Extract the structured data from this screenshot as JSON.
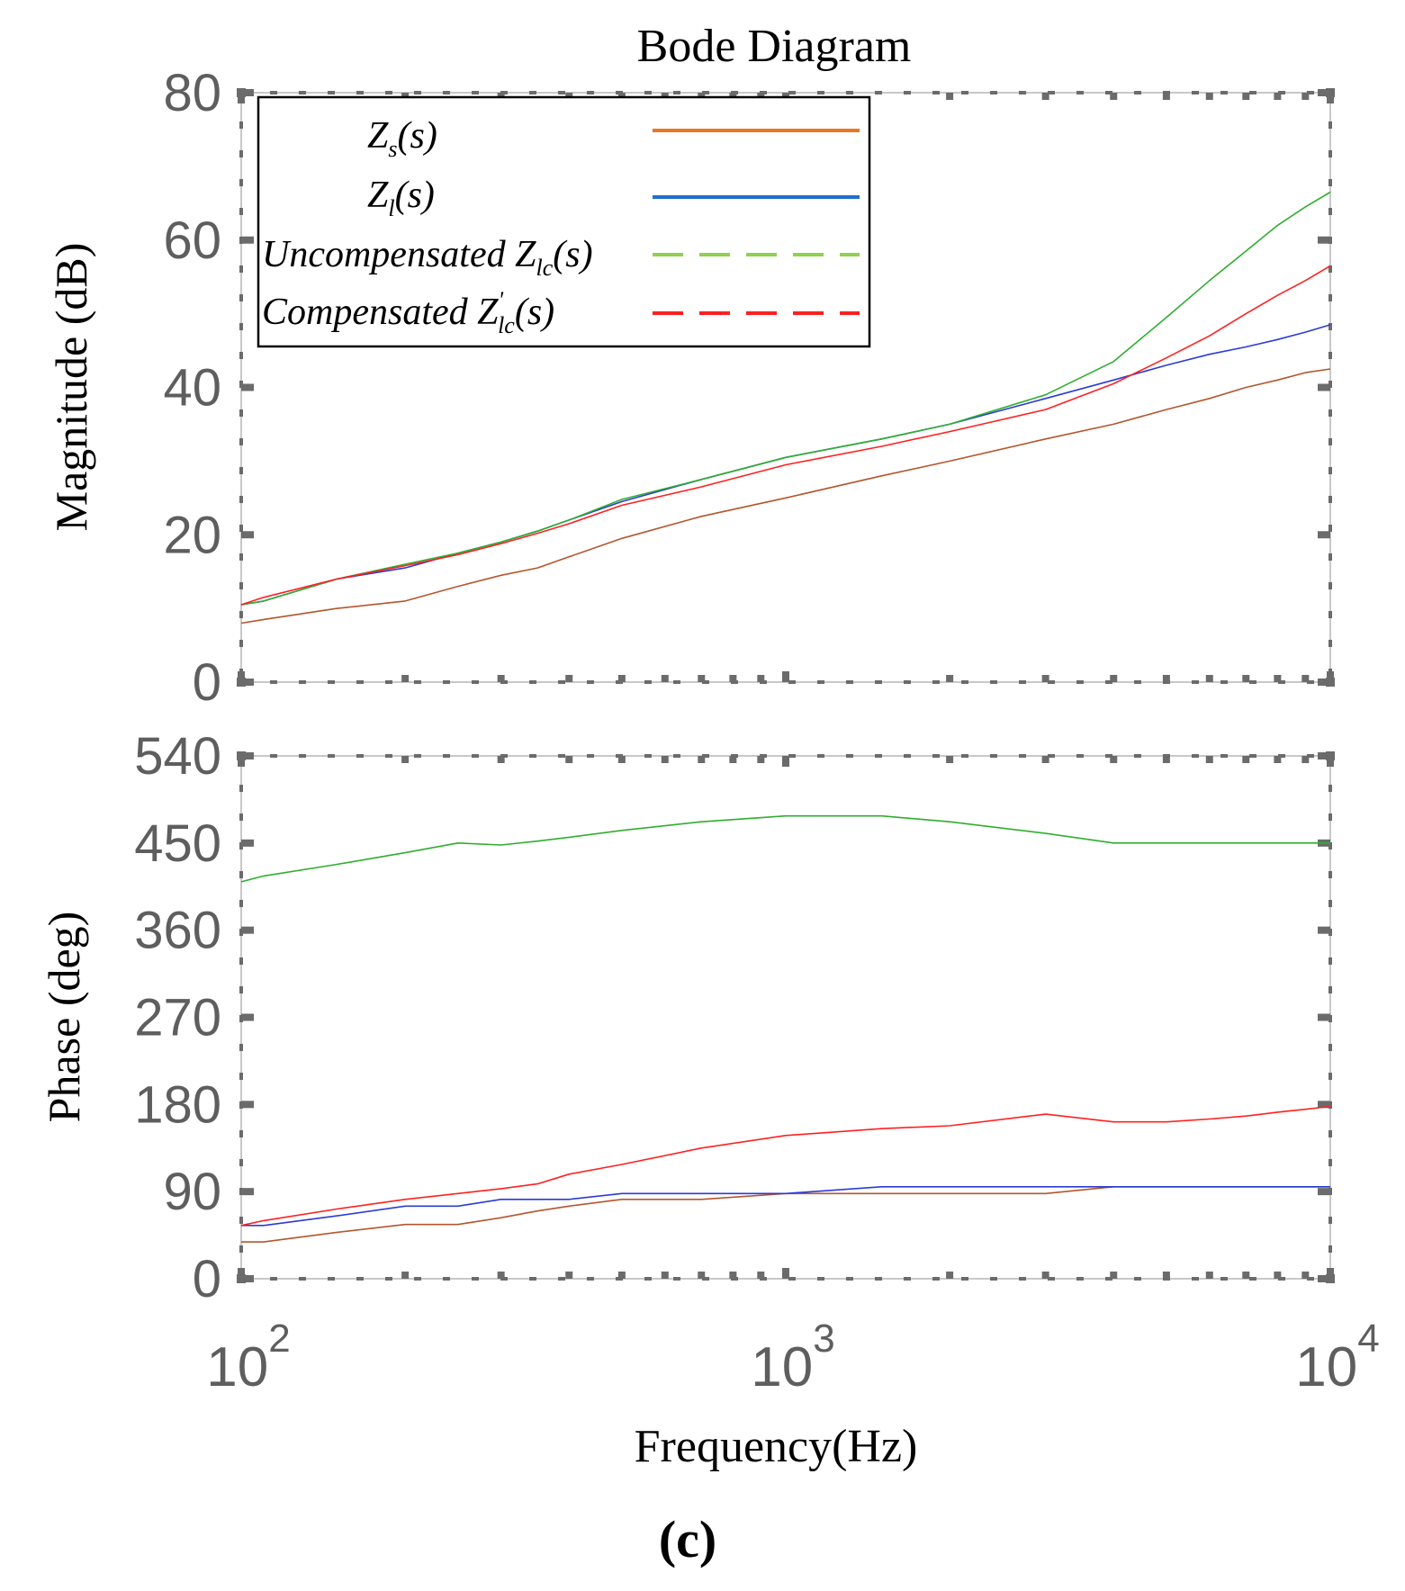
{
  "chart_data": {
    "type": "line",
    "title": "Bode Diagram",
    "xlabel": "Frequency(Hz)",
    "xscale": "log",
    "xlim": [
      100,
      10000
    ],
    "xticks": [
      {
        "value": 100,
        "base": "10",
        "exp": "2"
      },
      {
        "value": 1000,
        "base": "10",
        "exp": "3"
      },
      {
        "value": 10000,
        "base": "10",
        "exp": "4"
      }
    ],
    "caption": "(c)",
    "legend": {
      "position": "top-left",
      "entries": [
        {
          "label": "Zs(s)",
          "color": "#e87722",
          "dash": "solid"
        },
        {
          "label": "Zl(s)",
          "color": "#1f6fcf",
          "dash": "solid"
        },
        {
          "label": "Uncompensated Zlc(s)",
          "color": "#8fd14f",
          "dash": "dashed"
        },
        {
          "label": "Compensated Z'lc(s)",
          "color": "#ff2020",
          "dash": "dashed"
        }
      ]
    },
    "panels": [
      {
        "name": "magnitude",
        "ylabel": "Magnitude (dB)",
        "ylim": [
          0,
          80
        ],
        "yticks": [
          0,
          20,
          40,
          60,
          80
        ],
        "series": [
          {
            "name": "Zs(s)",
            "color": "#b5552d",
            "x": [
              100,
              110,
              150,
              200,
              250,
              300,
              350,
              400,
              500,
              700,
              1000,
              1500,
              2000,
              3000,
              4000,
              5000,
              6000,
              7000,
              8000,
              9000,
              10000
            ],
            "y": [
              8,
              8.5,
              10,
              11,
              13,
              14.5,
              15.5,
              17,
              19.5,
              22.5,
              25,
              28,
              30,
              33,
              35,
              37,
              38.5,
              40,
              41,
              42,
              42.5
            ]
          },
          {
            "name": "Zl(s)",
            "color": "#2b3bd6",
            "x": [
              100,
              110,
              150,
              200,
              250,
              300,
              350,
              400,
              500,
              700,
              1000,
              1500,
              2000,
              3000,
              4000,
              5000,
              6000,
              7000,
              8000,
              9000,
              10000
            ],
            "y": [
              10.5,
              11,
              14,
              15.5,
              17.5,
              19,
              20.5,
              22,
              24.5,
              27.5,
              30.5,
              33,
              35,
              38.5,
              41,
              43,
              44.5,
              45.5,
              46.5,
              47.5,
              48.5
            ]
          },
          {
            "name": "Uncompensated Zlc(s)",
            "color": "#2fae2f",
            "x": [
              100,
              110,
              150,
              200,
              250,
              300,
              350,
              400,
              500,
              700,
              1000,
              1500,
              2000,
              3000,
              4000,
              5000,
              6000,
              7000,
              8000,
              9000,
              10000
            ],
            "y": [
              10.5,
              11,
              14,
              16,
              17.5,
              19,
              20.5,
              22,
              24.8,
              27.5,
              30.5,
              33,
              35,
              39,
              43.5,
              49.5,
              54.5,
              58.5,
              62,
              64.5,
              66.5
            ]
          },
          {
            "name": "Compensated Z'lc(s)",
            "color": "#ff2020",
            "x": [
              100,
              110,
              150,
              200,
              250,
              300,
              350,
              400,
              500,
              700,
              1000,
              1500,
              2000,
              3000,
              4000,
              5000,
              6000,
              7000,
              8000,
              9000,
              10000
            ],
            "y": [
              10.5,
              11.5,
              14,
              15.8,
              17.3,
              18.8,
              20.2,
              21.5,
              24,
              26.5,
              29.5,
              32,
              34,
              37,
              40.5,
              44,
              47,
              50,
              52.5,
              54.5,
              56.5
            ]
          }
        ]
      },
      {
        "name": "phase",
        "ylabel": "Phase (deg)",
        "ylim": [
          0,
          540
        ],
        "yticks": [
          0,
          90,
          180,
          270,
          360,
          450,
          540
        ],
        "series": [
          {
            "name": "Zs(s)",
            "color": "#b5552d",
            "x": [
              100,
              110,
              150,
              200,
              250,
              300,
              350,
              400,
              500,
              700,
              1000,
              1500,
              2000,
              3000,
              4000,
              5000,
              6000,
              7000,
              8000,
              9000,
              10000
            ],
            "y": [
              38,
              38,
              48,
              56,
              56,
              63,
              70,
              75,
              82,
              82,
              88,
              88,
              88,
              88,
              95,
              95,
              95,
              95,
              95,
              95,
              95
            ]
          },
          {
            "name": "Zl(s)",
            "color": "#2b3bd6",
            "x": [
              100,
              110,
              150,
              200,
              250,
              300,
              350,
              400,
              500,
              700,
              1000,
              1500,
              2000,
              3000,
              4000,
              5000,
              6000,
              7000,
              8000,
              9000,
              10000
            ],
            "y": [
              55,
              55,
              65,
              75,
              75,
              82,
              82,
              82,
              88,
              88,
              88,
              95,
              95,
              95,
              95,
              95,
              95,
              95,
              95,
              95,
              95
            ]
          },
          {
            "name": "Uncompensated Zlc(s)",
            "color": "#2fae2f",
            "x": [
              100,
              110,
              150,
              200,
              250,
              300,
              350,
              400,
              500,
              700,
              1000,
              1500,
              2000,
              3000,
              4000,
              5000,
              6000,
              7000,
              8000,
              9000,
              10000
            ],
            "y": [
              410,
              416,
              428,
              440,
              450,
              448,
              452,
              456,
              463,
              472,
              478,
              478,
              472,
              460,
              450,
              450,
              450,
              450,
              450,
              450,
              450
            ]
          },
          {
            "name": "Compensated Z'lc(s)",
            "color": "#ff2020",
            "x": [
              100,
              110,
              150,
              200,
              250,
              300,
              350,
              400,
              500,
              700,
              1000,
              1500,
              2000,
              3000,
              4000,
              5000,
              6000,
              7000,
              8000,
              9000,
              10000
            ],
            "y": [
              55,
              60,
              72,
              82,
              88,
              93,
              98,
              108,
              118,
              135,
              148,
              155,
              158,
              170,
              162,
              162,
              165,
              168,
              172,
              175,
              178
            ]
          }
        ]
      }
    ]
  }
}
